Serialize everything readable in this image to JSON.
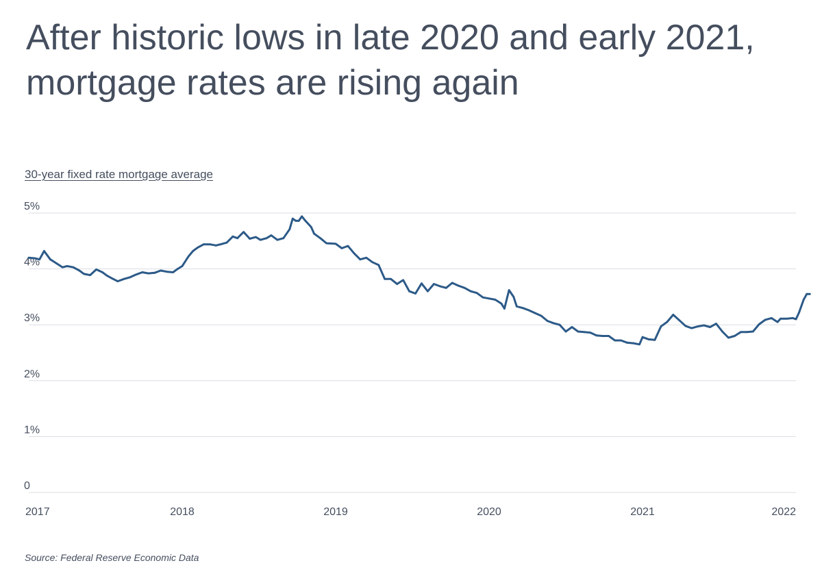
{
  "title": "After historic lows in late 2020 and early 2021, mortgage rates are rising again",
  "source": "Source:  Federal Reserve Economic Data",
  "colors": {
    "line": "#2c5a88",
    "grid": "#d9dde2",
    "text": "#454e5e"
  },
  "chart_data": {
    "type": "line",
    "subtitle": "30-year fixed rate mortgage average",
    "y_unit": "%",
    "ylim": [
      0,
      5
    ],
    "y_ticks": [
      0,
      1,
      2,
      3,
      4,
      5
    ],
    "y_tick_labels": [
      "0",
      "1%",
      "2%",
      "3%",
      "4%",
      "5%"
    ],
    "xlim": [
      2017,
      2022
    ],
    "x_ticks": [
      2017,
      2018,
      2019,
      2020,
      2021,
      2022
    ],
    "x_tick_labels": [
      "2017",
      "2018",
      "2019",
      "2020",
      "2021",
      "2022"
    ],
    "grid": true,
    "series": [
      {
        "points": [
          [
            2017.0,
            4.2
          ],
          [
            2017.04,
            4.19
          ],
          [
            2017.07,
            4.17
          ],
          [
            2017.1,
            4.32
          ],
          [
            2017.14,
            4.17
          ],
          [
            2017.18,
            4.1
          ],
          [
            2017.22,
            4.03
          ],
          [
            2017.25,
            4.05
          ],
          [
            2017.29,
            4.03
          ],
          [
            2017.33,
            3.97
          ],
          [
            2017.36,
            3.91
          ],
          [
            2017.4,
            3.89
          ],
          [
            2017.44,
            3.99
          ],
          [
            2017.48,
            3.94
          ],
          [
            2017.51,
            3.88
          ],
          [
            2017.55,
            3.82
          ],
          [
            2017.58,
            3.78
          ],
          [
            2017.62,
            3.82
          ],
          [
            2017.66,
            3.85
          ],
          [
            2017.7,
            3.9
          ],
          [
            2017.74,
            3.94
          ],
          [
            2017.78,
            3.92
          ],
          [
            2017.82,
            3.93
          ],
          [
            2017.86,
            3.97
          ],
          [
            2017.9,
            3.95
          ],
          [
            2017.94,
            3.94
          ],
          [
            2017.97,
            4.0
          ],
          [
            2018.0,
            4.05
          ],
          [
            2018.04,
            4.22
          ],
          [
            2018.07,
            4.32
          ],
          [
            2018.1,
            4.38
          ],
          [
            2018.14,
            4.44
          ],
          [
            2018.18,
            4.44
          ],
          [
            2018.22,
            4.42
          ],
          [
            2018.25,
            4.44
          ],
          [
            2018.29,
            4.47
          ],
          [
            2018.33,
            4.58
          ],
          [
            2018.36,
            4.55
          ],
          [
            2018.4,
            4.66
          ],
          [
            2018.44,
            4.54
          ],
          [
            2018.48,
            4.57
          ],
          [
            2018.51,
            4.52
          ],
          [
            2018.55,
            4.55
          ],
          [
            2018.58,
            4.6
          ],
          [
            2018.62,
            4.52
          ],
          [
            2018.66,
            4.55
          ],
          [
            2018.7,
            4.71
          ],
          [
            2018.72,
            4.9
          ],
          [
            2018.74,
            4.86
          ],
          [
            2018.76,
            4.86
          ],
          [
            2018.78,
            4.94
          ],
          [
            2018.8,
            4.87
          ],
          [
            2018.82,
            4.81
          ],
          [
            2018.84,
            4.75
          ],
          [
            2018.86,
            4.63
          ],
          [
            2018.9,
            4.55
          ],
          [
            2018.94,
            4.46
          ],
          [
            2019.0,
            4.45
          ],
          [
            2019.04,
            4.37
          ],
          [
            2019.08,
            4.41
          ],
          [
            2019.12,
            4.28
          ],
          [
            2019.16,
            4.17
          ],
          [
            2019.2,
            4.2
          ],
          [
            2019.24,
            4.12
          ],
          [
            2019.28,
            4.07
          ],
          [
            2019.32,
            3.82
          ],
          [
            2019.36,
            3.82
          ],
          [
            2019.4,
            3.73
          ],
          [
            2019.44,
            3.8
          ],
          [
            2019.48,
            3.6
          ],
          [
            2019.52,
            3.56
          ],
          [
            2019.56,
            3.74
          ],
          [
            2019.6,
            3.6
          ],
          [
            2019.64,
            3.73
          ],
          [
            2019.68,
            3.69
          ],
          [
            2019.72,
            3.66
          ],
          [
            2019.76,
            3.75
          ],
          [
            2019.8,
            3.7
          ],
          [
            2019.84,
            3.66
          ],
          [
            2019.88,
            3.6
          ],
          [
            2019.92,
            3.57
          ],
          [
            2019.96,
            3.49
          ],
          [
            2020.0,
            3.47
          ],
          [
            2020.04,
            3.45
          ],
          [
            2020.08,
            3.38
          ],
          [
            2020.1,
            3.29
          ],
          [
            2020.13,
            3.62
          ],
          [
            2020.16,
            3.5
          ],
          [
            2020.18,
            3.33
          ],
          [
            2020.22,
            3.3
          ],
          [
            2020.26,
            3.26
          ],
          [
            2020.3,
            3.21
          ],
          [
            2020.34,
            3.16
          ],
          [
            2020.38,
            3.07
          ],
          [
            2020.42,
            3.03
          ],
          [
            2020.46,
            3.0
          ],
          [
            2020.5,
            2.88
          ],
          [
            2020.54,
            2.96
          ],
          [
            2020.58,
            2.88
          ],
          [
            2020.62,
            2.87
          ],
          [
            2020.66,
            2.86
          ],
          [
            2020.7,
            2.81
          ],
          [
            2020.74,
            2.8
          ],
          [
            2020.78,
            2.8
          ],
          [
            2020.82,
            2.72
          ],
          [
            2020.86,
            2.72
          ],
          [
            2020.9,
            2.68
          ],
          [
            2020.94,
            2.67
          ],
          [
            2020.98,
            2.65
          ],
          [
            2021.0,
            2.78
          ],
          [
            2021.04,
            2.74
          ],
          [
            2021.08,
            2.73
          ],
          [
            2021.12,
            2.97
          ],
          [
            2021.16,
            3.05
          ],
          [
            2021.2,
            3.18
          ],
          [
            2021.24,
            3.08
          ],
          [
            2021.28,
            2.98
          ],
          [
            2021.32,
            2.94
          ],
          [
            2021.36,
            2.97
          ],
          [
            2021.4,
            2.99
          ],
          [
            2021.44,
            2.96
          ],
          [
            2021.48,
            3.02
          ],
          [
            2021.52,
            2.88
          ],
          [
            2021.56,
            2.77
          ],
          [
            2021.6,
            2.8
          ],
          [
            2021.64,
            2.87
          ],
          [
            2021.68,
            2.87
          ],
          [
            2021.72,
            2.88
          ],
          [
            2021.76,
            3.01
          ],
          [
            2021.8,
            3.09
          ],
          [
            2021.84,
            3.12
          ],
          [
            2021.88,
            3.05
          ],
          [
            2021.9,
            3.11
          ],
          [
            2021.94,
            3.11
          ],
          [
            2021.98,
            3.12
          ],
          [
            2022.0,
            3.1
          ],
          [
            2022.02,
            3.22
          ],
          [
            2022.05,
            3.45
          ],
          [
            2022.07,
            3.55
          ],
          [
            2022.09,
            3.55
          ]
        ]
      }
    ]
  }
}
